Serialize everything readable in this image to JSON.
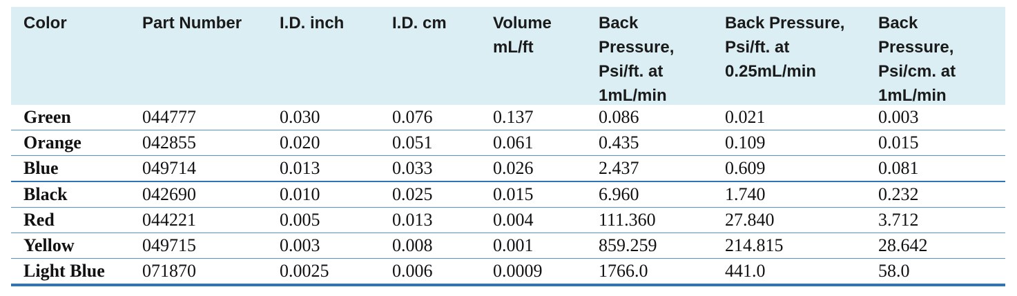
{
  "table": {
    "headers": [
      "Color",
      "Part Number",
      "I.D. inch",
      "I.D. cm",
      "Volume\nmL/ft",
      "Back\nPressure,\nPsi/ft. at\n1mL/min",
      "Back Pressure,\nPsi/ft. at\n0.25mL/min",
      "Back\nPressure,\nPsi/cm. at\n1mL/min"
    ],
    "rows": [
      [
        "Green",
        "044777",
        "0.030",
        "0.076",
        "0.137",
        "0.086",
        "0.021",
        "0.003"
      ],
      [
        "Orange",
        "042855",
        "0.020",
        "0.051",
        "0.061",
        "0.435",
        "0.109",
        "0.015"
      ],
      [
        "Blue",
        "049714",
        "0.013",
        "0.033",
        "0.026",
        "2.437",
        "0.609",
        "0.081"
      ],
      [
        "Black",
        "042690",
        "0.010",
        "0.025",
        "0.015",
        "6.960",
        "1.740",
        "0.232"
      ],
      [
        "Red",
        "044221",
        "0.005",
        "0.013",
        "0.004",
        "111.360",
        "27.840",
        "3.712"
      ],
      [
        "Yellow",
        "049715",
        "0.003",
        "0.008",
        "0.001",
        "859.259",
        "214.815",
        "28.642"
      ],
      [
        "Light Blue",
        "071870",
        "0.0025",
        "0.006",
        "0.0009",
        "1766.0",
        "441.0",
        "58.0"
      ]
    ]
  },
  "colors": {
    "header_bg": "#daeef3",
    "rule": "#2e75b6"
  }
}
